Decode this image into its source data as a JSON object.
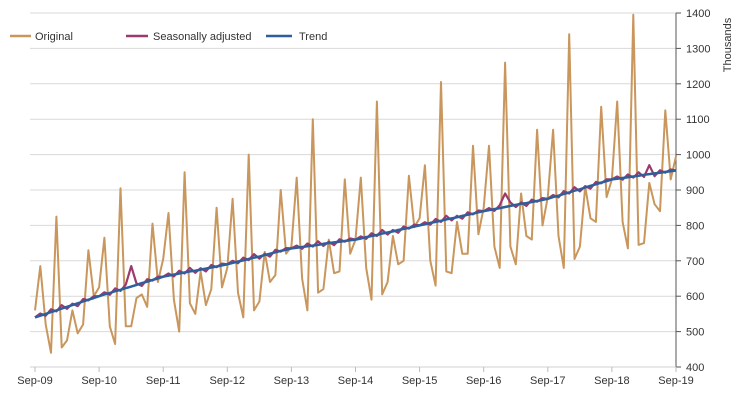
{
  "chart_data": {
    "type": "line",
    "title": "",
    "xlabel": "",
    "ylabel": "Thousands",
    "ylim": [
      400,
      1400
    ],
    "y_axis_side": "right",
    "y_ticks": [
      400,
      500,
      600,
      700,
      800,
      900,
      1000,
      1100,
      1200,
      1300,
      1400
    ],
    "x_tick_labels": [
      "Sep-09",
      "Sep-10",
      "Sep-11",
      "Sep-12",
      "Sep-13",
      "Sep-14",
      "Sep-15",
      "Sep-16",
      "Sep-17",
      "Sep-18",
      "Sep-19"
    ],
    "x_start": "Sep-09",
    "x_end": "Sep-19",
    "frequency": "monthly",
    "grid": "horizontal",
    "legend_position": "top-left",
    "series": [
      {
        "name": "Original",
        "color": "#C9965C",
        "values": [
          560,
          685,
          520,
          440,
          825,
          455,
          475,
          560,
          495,
          520,
          730,
          600,
          625,
          765,
          515,
          465,
          905,
          515,
          515,
          595,
          605,
          570,
          805,
          640,
          705,
          835,
          590,
          500,
          950,
          580,
          550,
          670,
          575,
          620,
          850,
          625,
          680,
          875,
          610,
          540,
          1000,
          560,
          585,
          725,
          640,
          660,
          900,
          720,
          740,
          935,
          650,
          560,
          1100,
          610,
          620,
          760,
          665,
          670,
          930,
          720,
          760,
          935,
          680,
          590,
          1150,
          605,
          640,
          770,
          690,
          700,
          940,
          795,
          820,
          970,
          700,
          630,
          1205,
          670,
          665,
          810,
          720,
          720,
          1025,
          775,
          850,
          1025,
          740,
          680,
          1260,
          740,
          690,
          890,
          770,
          760,
          1070,
          800,
          880,
          1070,
          770,
          680,
          1340,
          705,
          740,
          910,
          820,
          810,
          1135,
          880,
          930,
          1150,
          810,
          735,
          1395,
          745,
          750,
          920,
          860,
          840,
          1125,
          930,
          995
        ]
      },
      {
        "name": "Seasonally adjusted",
        "color": "#9B3A6E",
        "values": [
          540,
          551,
          545,
          563,
          557,
          575,
          564,
          579,
          572,
          592,
          588,
          600,
          600,
          611,
          604,
          622,
          615,
          633,
          685,
          636,
          629,
          648,
          644,
          655,
          655,
          664,
          656,
          672,
          664,
          680,
          666,
          679,
          670,
          688,
          682,
          692,
          690,
          700,
          693,
          709,
          702,
          719,
          706,
          720,
          712,
          731,
          726,
          736,
          735,
          743,
          734,
          749,
          740,
          755,
          742,
          754,
          744,
          761,
          754,
          763,
          760,
          769,
          762,
          778,
          770,
          787,
          774,
          787,
          779,
          797,
          791,
          802,
          800,
          809,
          802,
          818,
          810,
          827,
          814,
          827,
          819,
          837,
          831,
          842,
          840,
          849,
          841,
          857,
          890,
          865,
          852,
          865,
          855,
          873,
          867,
          877,
          875,
          886,
          879,
          897,
          890,
          908,
          896,
          911,
          904,
          923,
          919,
          930,
          930,
          938,
          929,
          944,
          935,
          950,
          937,
          970,
          939,
          956,
          949,
          958,
          955
        ]
      },
      {
        "name": "Trend",
        "color": "#2F5F9B",
        "values": [
          540,
          545,
          550,
          555,
          560,
          565,
          570,
          575,
          580,
          585,
          590,
          595,
          600,
          605,
          609,
          614,
          618,
          623,
          627,
          632,
          637,
          641,
          646,
          650,
          655,
          658,
          661,
          664,
          667,
          670,
          672,
          675,
          678,
          681,
          684,
          687,
          690,
          694,
          698,
          701,
          705,
          709,
          712,
          716,
          720,
          724,
          728,
          731,
          735,
          737,
          739,
          741,
          743,
          745,
          748,
          750,
          752,
          754,
          756,
          758,
          760,
          763,
          767,
          770,
          773,
          777,
          780,
          783,
          787,
          790,
          793,
          797,
          800,
          803,
          807,
          810,
          813,
          817,
          820,
          823,
          827,
          830,
          833,
          837,
          840,
          843,
          846,
          849,
          852,
          855,
          858,
          861,
          863,
          866,
          869,
          872,
          875,
          880,
          884,
          889,
          893,
          898,
          902,
          907,
          912,
          916,
          921,
          925,
          930,
          932,
          934,
          936,
          938,
          940,
          943,
          945,
          947,
          949,
          951,
          953,
          955
        ]
      }
    ]
  }
}
